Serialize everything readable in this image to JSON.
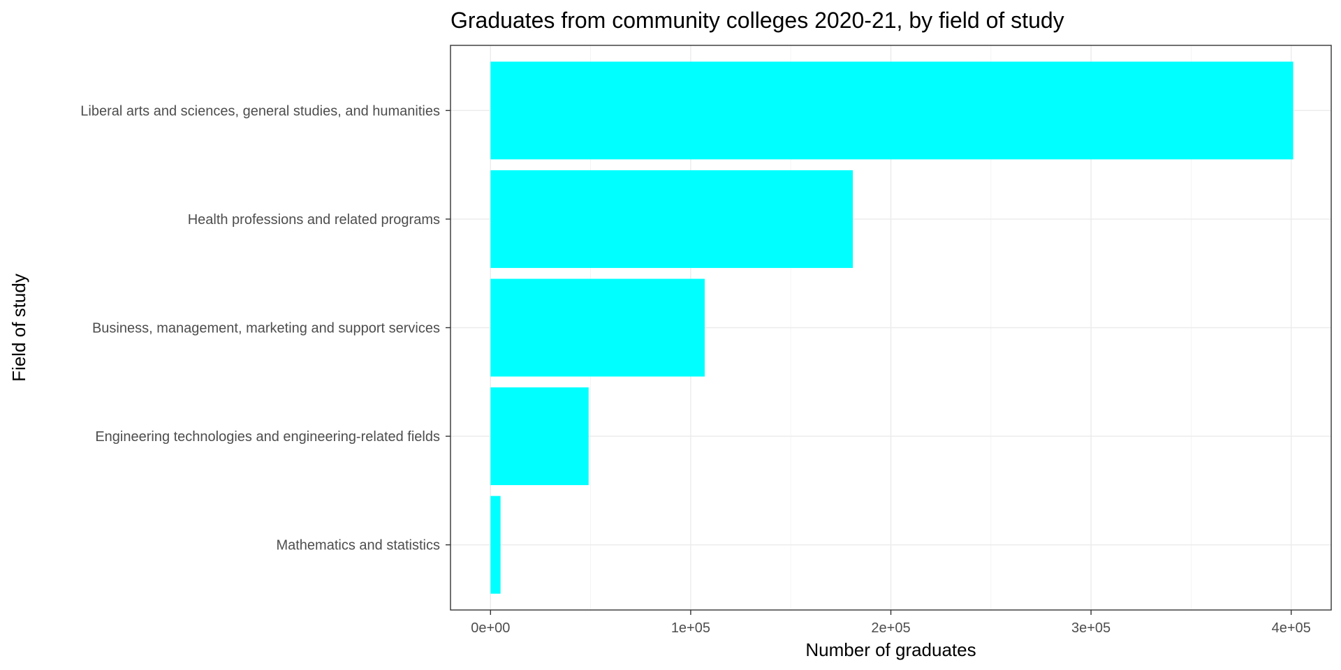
{
  "chart_data": {
    "type": "bar",
    "orientation": "horizontal",
    "title": "Graduates from community colleges 2020-21, by field of study",
    "xlabel": "Number of graduates",
    "ylabel": "Field of study",
    "categories": [
      "Liberal arts and sciences, general studies, and humanities",
      "Health professions and related programs",
      "Business, management, marketing and support services",
      "Engineering technologies and engineering-related fields",
      "Mathematics and statistics"
    ],
    "values": [
      401000,
      181000,
      107000,
      49000,
      5000
    ],
    "xlim": [
      -20000,
      420000
    ],
    "xticks": [
      0,
      100000,
      200000,
      300000,
      400000
    ],
    "xtick_labels": [
      "0e+00",
      "1e+05",
      "2e+05",
      "3e+05",
      "4e+05"
    ],
    "grid": true,
    "bar_color": "#00ffff",
    "legend": "none"
  }
}
